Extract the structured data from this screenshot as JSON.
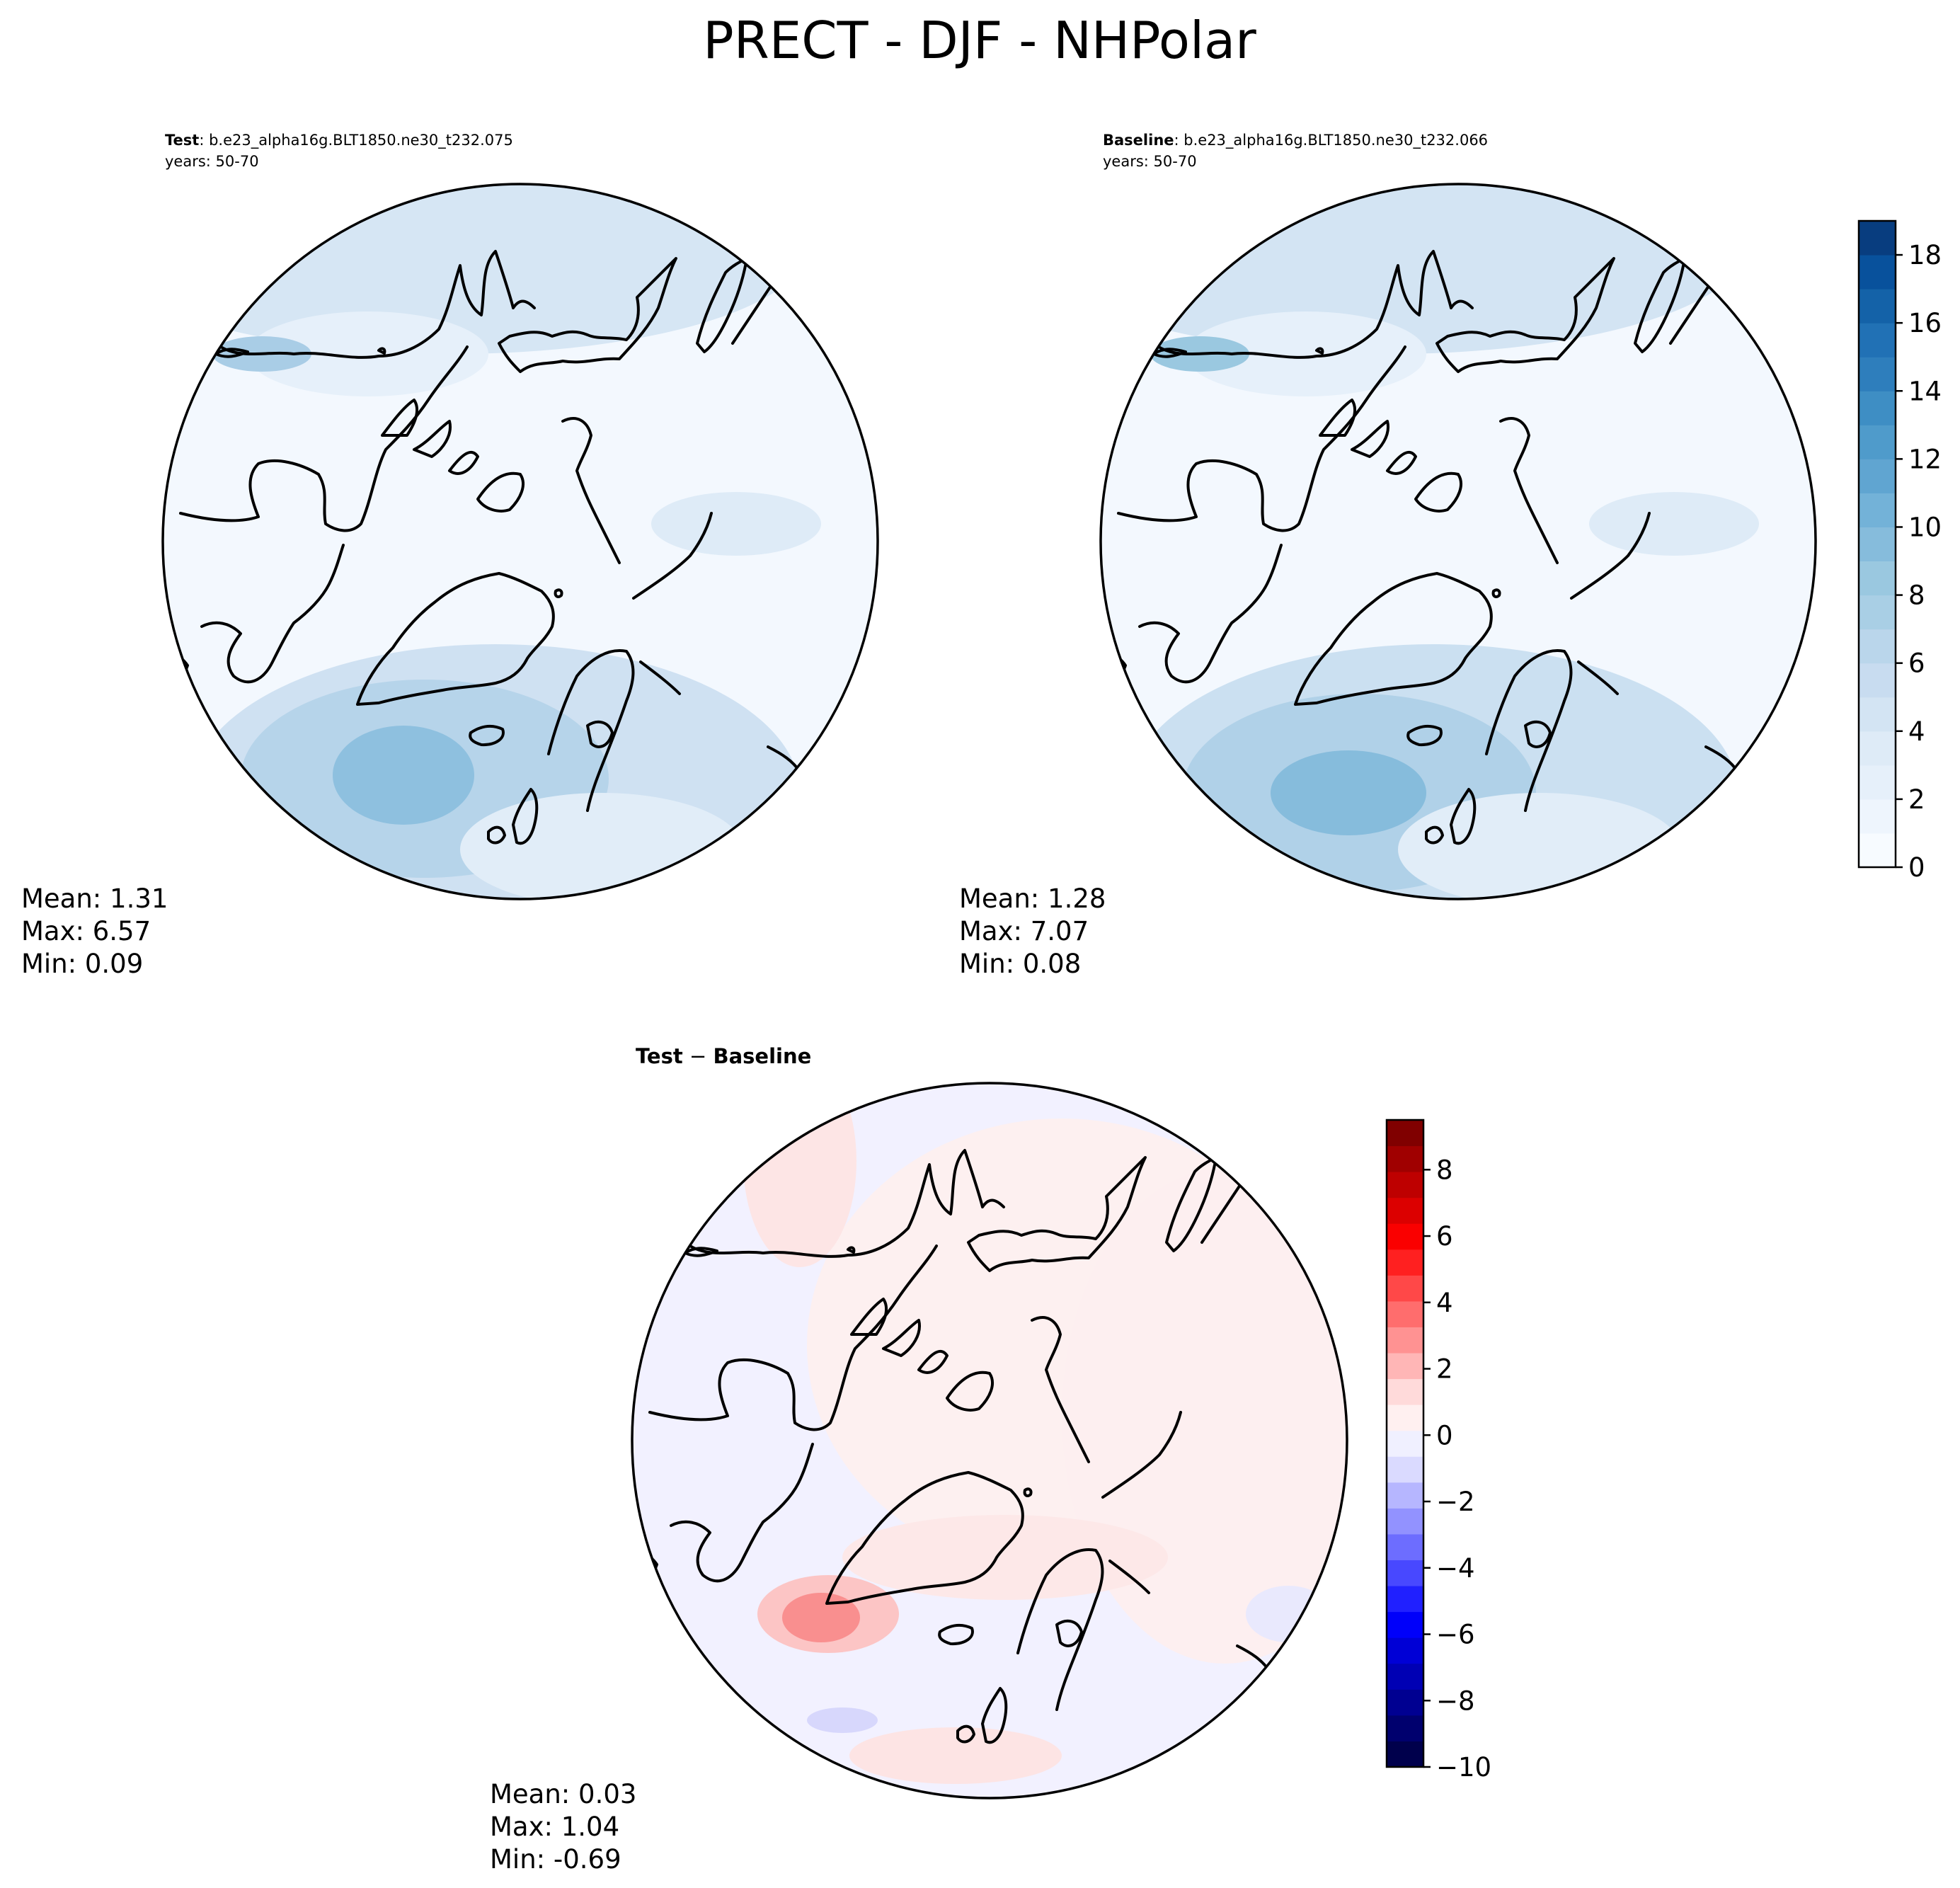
{
  "figure": {
    "title": "PRECT - DJF - NHPolar"
  },
  "panels": {
    "test": {
      "label": "Test",
      "case": ": b.e23_alpha16g.BLT1850.ne30_t232.075",
      "years": "years: 50-70",
      "stats": {
        "mean": "Mean:  1.31",
        "max": "Max:  6.57",
        "min": "Min:  0.09"
      }
    },
    "baseline": {
      "label": "Baseline",
      "case": ": b.e23_alpha16g.BLT1850.ne30_t232.066",
      "years": "years: 50-70",
      "stats": {
        "mean": "Mean:  1.28",
        "max": "Max:  7.07",
        "min": "Min:  0.08"
      }
    },
    "diff": {
      "label_left": "Test",
      "label_op": " − ",
      "label_right": "Baseline",
      "stats": {
        "mean": "Mean:  0.03",
        "max": "Max:  1.04",
        "min": "Min: -0.69"
      }
    }
  },
  "chart_data": [
    {
      "type": "heatmap",
      "title": "Test : b.e23_alpha16g.BLT1850.ne30_t232.075",
      "projection": "north polar stereographic",
      "variable": "PRECT",
      "season": "DJF",
      "region": "NHPolar",
      "mean": 1.31,
      "max": 6.57,
      "min": 0.09
    },
    {
      "type": "heatmap",
      "title": "Baseline : b.e23_alpha16g.BLT1850.ne30_t232.066",
      "projection": "north polar stereographic",
      "variable": "PRECT",
      "season": "DJF",
      "region": "NHPolar",
      "mean": 1.28,
      "max": 7.07,
      "min": 0.08,
      "colorbar": {
        "range": [
          0,
          19
        ],
        "ticks": [
          0,
          2,
          4,
          6,
          8,
          10,
          12,
          14,
          16,
          18
        ],
        "tick_labels": [
          "0",
          "2",
          "4",
          "6",
          "8",
          "10",
          "12",
          "14",
          "16",
          "18"
        ],
        "levels": 19,
        "colormap": "Blues",
        "colors": [
          "#f7fbff",
          "#eef5fd",
          "#e6f0fa",
          "#deebf7",
          "#d3e4f3",
          "#c8dcf0",
          "#bad6eb",
          "#a9cfe5",
          "#9ac8e0",
          "#86bcdc",
          "#73b2d8",
          "#60a5d1",
          "#4f9bcb",
          "#3e8ec4",
          "#2e7ebc",
          "#2171b5",
          "#1462a8",
          "#08519c",
          "#083d7f"
        ]
      }
    },
    {
      "type": "heatmap",
      "title": "Test − Baseline",
      "projection": "north polar stereographic",
      "variable": "PRECT",
      "season": "DJF",
      "region": "NHPolar",
      "mean": 0.03,
      "max": 1.04,
      "min": -0.69,
      "colorbar": {
        "range": [
          -10,
          9.5
        ],
        "ticks": [
          -10,
          -8,
          -6,
          -4,
          -2,
          0,
          2,
          4,
          6,
          8
        ],
        "tick_labels": [
          "−10",
          "−8",
          "−6",
          "−4",
          "−2",
          "0",
          "2",
          "4",
          "6",
          "8"
        ],
        "colormap": "seismic",
        "colors": [
          "#00004c",
          "#00006e",
          "#000091",
          "#0000b4",
          "#0000d6",
          "#0000fa",
          "#2020ff",
          "#4848ff",
          "#6d6dff",
          "#9292ff",
          "#b6b6ff",
          "#dadaff",
          "#f0f0ff",
          "#fff0f0",
          "#ffdada",
          "#ffb6b6",
          "#ff9292",
          "#ff6d6d",
          "#ff4848",
          "#ff2020",
          "#fa0000",
          "#dc0000",
          "#be0000",
          "#a00000",
          "#800000"
        ]
      }
    }
  ]
}
